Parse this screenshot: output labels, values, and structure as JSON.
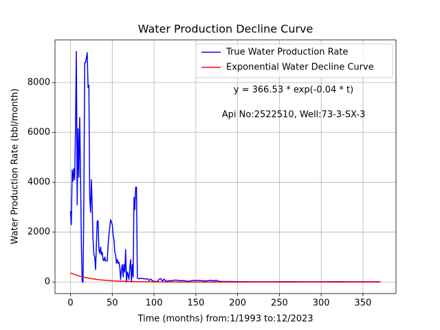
{
  "chart_data": {
    "type": "line",
    "title": "Water Production Decline Curve",
    "x_label": "Time (months) from:1/1993 to:12/2023",
    "y_label": "Water Production Rate (bbl/month)",
    "annotations": [
      "y = 366.53 * exp(-0.04 * t)",
      "Api No:2522510, Well:73-3-SX-3"
    ],
    "xlim": [
      -18.55,
      389.55
    ],
    "xticks": [
      0,
      50,
      100,
      150,
      200,
      250,
      300,
      350
    ],
    "ylim": [
      -462,
      9712
    ],
    "yticks": [
      0,
      2000,
      4000,
      6000,
      8000
    ],
    "grid": true,
    "legend": "upper right",
    "series": [
      {
        "name": "True Water Production Rate",
        "color": "#0000ff",
        "x": [
          0,
          1,
          2,
          3,
          4,
          5,
          6,
          7,
          8,
          9,
          10,
          11,
          12,
          13,
          14,
          15,
          16,
          17,
          18,
          19,
          20,
          21,
          22,
          23,
          24,
          25,
          26,
          27,
          28,
          29,
          30,
          31,
          32,
          33,
          34,
          35,
          36,
          37,
          38,
          39,
          40,
          41,
          42,
          43,
          44,
          45,
          46,
          47,
          48,
          49,
          50,
          51,
          52,
          53,
          54,
          55,
          56,
          57,
          58,
          59,
          60,
          61,
          62,
          63,
          64,
          65,
          66,
          67,
          68,
          69,
          70,
          71,
          72,
          73,
          74,
          75,
          76,
          77,
          78,
          79,
          80,
          82,
          84,
          86,
          88,
          90,
          92,
          94,
          96,
          98,
          100,
          104,
          106,
          108,
          110,
          112,
          114,
          118,
          122,
          126,
          130,
          134,
          138,
          142,
          146,
          150,
          154,
          158,
          162,
          166,
          170,
          172,
          174,
          176,
          178,
          180,
          190,
          200,
          220,
          240,
          260,
          280,
          300,
          320,
          340,
          360,
          371
        ],
        "values": [
          2850,
          2300,
          4500,
          4050,
          4550,
          4100,
          6200,
          9250,
          3100,
          6150,
          4200,
          6600,
          4400,
          1500,
          0,
          0,
          3300,
          8800,
          8800,
          9000,
          9200,
          7800,
          7900,
          3400,
          2800,
          4100,
          3000,
          1700,
          1100,
          1000,
          500,
          1500,
          2450,
          2450,
          1300,
          1150,
          1400,
          1100,
          1200,
          900,
          850,
          1000,
          850,
          850,
          850,
          1500,
          1900,
          2200,
          2500,
          2400,
          2300,
          1900,
          1700,
          1200,
          1100,
          750,
          900,
          750,
          800,
          600,
          100,
          500,
          700,
          200,
          700,
          400,
          1300,
          0,
          400,
          300,
          100,
          600,
          900,
          0,
          700,
          200,
          3400,
          2900,
          3800,
          3800,
          150,
          130,
          150,
          140,
          130,
          120,
          140,
          60,
          120,
          50,
          30,
          20,
          110,
          140,
          40,
          120,
          30,
          50,
          60,
          80,
          60,
          60,
          40,
          30,
          70,
          60,
          70,
          50,
          40,
          60,
          70,
          30,
          80,
          40,
          30,
          20,
          20,
          15,
          10,
          10,
          15,
          10,
          10,
          12,
          10,
          10,
          10
        ]
      },
      {
        "name": "Exponential Water Decline Curve",
        "color": "#ff0000",
        "x": [
          0,
          5,
          10,
          15,
          20,
          30,
          40,
          50,
          60,
          70,
          80,
          90,
          100,
          120,
          150,
          200,
          250,
          300,
          371
        ],
        "values": [
          366.53,
          300.1,
          245.7,
          201.2,
          164.7,
          110.4,
          74.0,
          49.6,
          33.3,
          22.3,
          14.9,
          10.0,
          6.7,
          3.0,
          0.9,
          0.1,
          0,
          0,
          0
        ]
      }
    ]
  }
}
